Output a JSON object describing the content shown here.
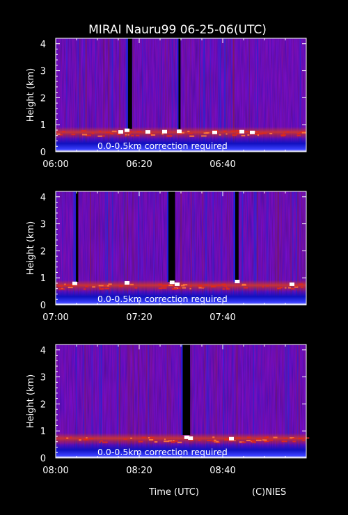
{
  "title": "MIRAI Nauru99 06-25-06(UTC)",
  "xlabel_bottom": "Time (UTC)",
  "credit": "(C)NIES",
  "colors": {
    "background": "#000000",
    "text": "#ffffff",
    "base_noise": "#2a1a8c",
    "cloud_layer": "#c8301c",
    "cloud_top": "#ffffff",
    "ground_band": "#1010d0"
  },
  "chart_data": [
    {
      "type": "heatmap",
      "ylabel": "Height (km)",
      "yticks": [
        0,
        1,
        2,
        3,
        4
      ],
      "ylim": [
        0,
        4.2
      ],
      "xlim_minutes": [
        0,
        60
      ],
      "xtick_labels": [
        "06:00",
        "06:20",
        "06:40"
      ],
      "annotation": "0.0-0.5km correction required",
      "cloud_base_km": 0.7,
      "data_gaps_minutes": [
        [
          17.3,
          18.3
        ],
        [
          29.4,
          29.9
        ]
      ],
      "bright_returns": [
        {
          "t": 15.5,
          "h": 0.72
        },
        {
          "t": 17.0,
          "h": 0.78
        },
        {
          "t": 22.0,
          "h": 0.72
        },
        {
          "t": 26.0,
          "h": 0.73
        },
        {
          "t": 29.5,
          "h": 0.74
        },
        {
          "t": 38.0,
          "h": 0.7
        },
        {
          "t": 44.5,
          "h": 0.73
        },
        {
          "t": 47.0,
          "h": 0.7
        }
      ]
    },
    {
      "type": "heatmap",
      "ylabel": "Height (km)",
      "yticks": [
        0,
        1,
        2,
        3,
        4
      ],
      "ylim": [
        0,
        4.2
      ],
      "xlim_minutes": [
        0,
        60
      ],
      "xtick_labels": [
        "07:00",
        "07:20",
        "07:40"
      ],
      "annotation": "0.0-0.5km correction required",
      "cloud_base_km": 0.7,
      "data_gaps_minutes": [
        [
          4.8,
          5.4
        ],
        [
          27.0,
          28.6
        ],
        [
          43.0,
          43.8
        ]
      ],
      "bright_returns": [
        {
          "t": 4.5,
          "h": 0.78
        },
        {
          "t": 17.0,
          "h": 0.8
        },
        {
          "t": 27.8,
          "h": 0.82
        },
        {
          "t": 29.0,
          "h": 0.75
        },
        {
          "t": 43.4,
          "h": 0.85
        },
        {
          "t": 56.5,
          "h": 0.75
        }
      ]
    },
    {
      "type": "heatmap",
      "ylabel": "Height (km)",
      "yticks": [
        0,
        1,
        2,
        3,
        4
      ],
      "ylim": [
        0,
        4.2
      ],
      "xlim_minutes": [
        0,
        60
      ],
      "xtick_labels": [
        "08:00",
        "08:20",
        "08:40"
      ],
      "annotation": "0.0-0.5km correction required",
      "cloud_base_km": 0.7,
      "data_gaps_minutes": [
        [
          30.4,
          32.2
        ]
      ],
      "bright_returns": [
        {
          "t": 31.3,
          "h": 0.75
        },
        {
          "t": 32.2,
          "h": 0.72
        },
        {
          "t": 42.0,
          "h": 0.7
        }
      ]
    }
  ]
}
